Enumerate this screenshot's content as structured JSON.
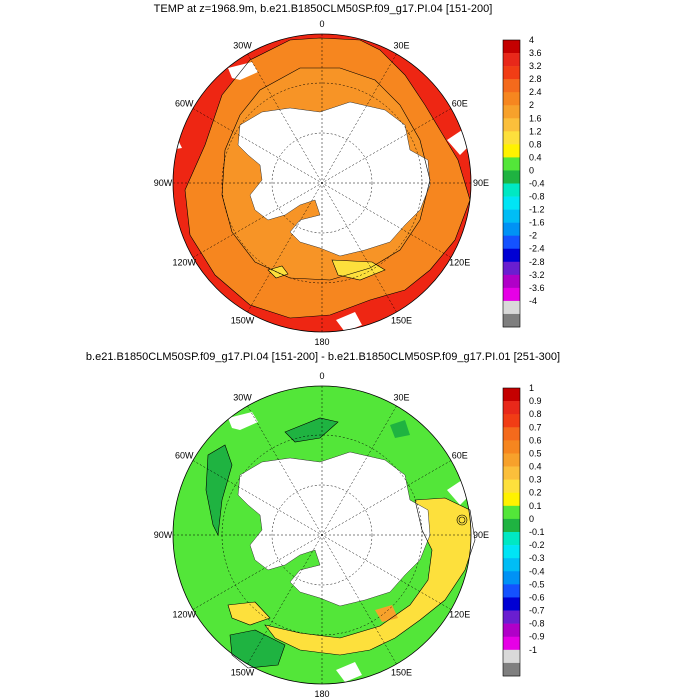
{
  "panels": [
    {
      "title": "TEMP at z=1968.9m, b.e21.B1850CLM50SP.f09_g17.PI.04 [151-200]",
      "colorbar": {
        "labels": [
          "4",
          "3.6",
          "3.2",
          "2.8",
          "2.4",
          "2",
          "1.6",
          "1.2",
          "0.8",
          "0.4",
          "0",
          "-0.4",
          "-0.8",
          "-1.2",
          "-1.6",
          "-2",
          "-2.4",
          "-2.8",
          "-3.2",
          "-3.6",
          "-4"
        ],
        "colors": [
          "#c40000",
          "#e8281a",
          "#f13d15",
          "#f46a1c",
          "#f6861f",
          "#f7a12b",
          "#fbbf3b",
          "#fde03c",
          "#fff200",
          "#53e639",
          "#1fb341",
          "#00e8c3",
          "#00e5f5",
          "#00bdf5",
          "#0092f5",
          "#1452ff",
          "#0000d4",
          "#6a1ed0",
          "#b000c8",
          "#e600e6",
          "#d9d9d9",
          "#7f7f7f"
        ]
      },
      "fields": {
        "background": "#f6861f",
        "outer_ring": "#ee2613",
        "mid_ring": "#f7a12b",
        "patch": "#fde03c"
      }
    },
    {
      "title": "b.e21.B1850CLM50SP.f09_g17.PI.04 [151-200] - b.e21.B1850CLM50SP.f09_g17.PI.01 [251-300]",
      "colorbar": {
        "labels": [
          "1",
          "0.9",
          "0.8",
          "0.7",
          "0.6",
          "0.5",
          "0.4",
          "0.3",
          "0.2",
          "0.1",
          "0",
          "-0.1",
          "-0.2",
          "-0.3",
          "-0.4",
          "-0.5",
          "-0.6",
          "-0.7",
          "-0.8",
          "-0.9",
          "-1"
        ],
        "colors": [
          "#c40000",
          "#e8281a",
          "#f13d15",
          "#f46a1c",
          "#f6861f",
          "#f7a12b",
          "#fbbf3b",
          "#fde03c",
          "#fff200",
          "#53e639",
          "#1fb341",
          "#00e8c3",
          "#00e5f5",
          "#00bdf5",
          "#0092f5",
          "#1452ff",
          "#0000d4",
          "#6a1ed0",
          "#b000c8",
          "#e600e6",
          "#d9d9d9",
          "#7f7f7f"
        ]
      },
      "fields": {
        "background": "#53e639",
        "yellow_band": "#fde03c",
        "orange_patch": "#f7a12b",
        "dark_patch": "#1fb341"
      }
    }
  ],
  "longitude_labels": [
    "0",
    "30E",
    "60E",
    "90E",
    "120E",
    "150E",
    "180",
    "150W",
    "120W",
    "90W",
    "60W",
    "30W"
  ]
}
